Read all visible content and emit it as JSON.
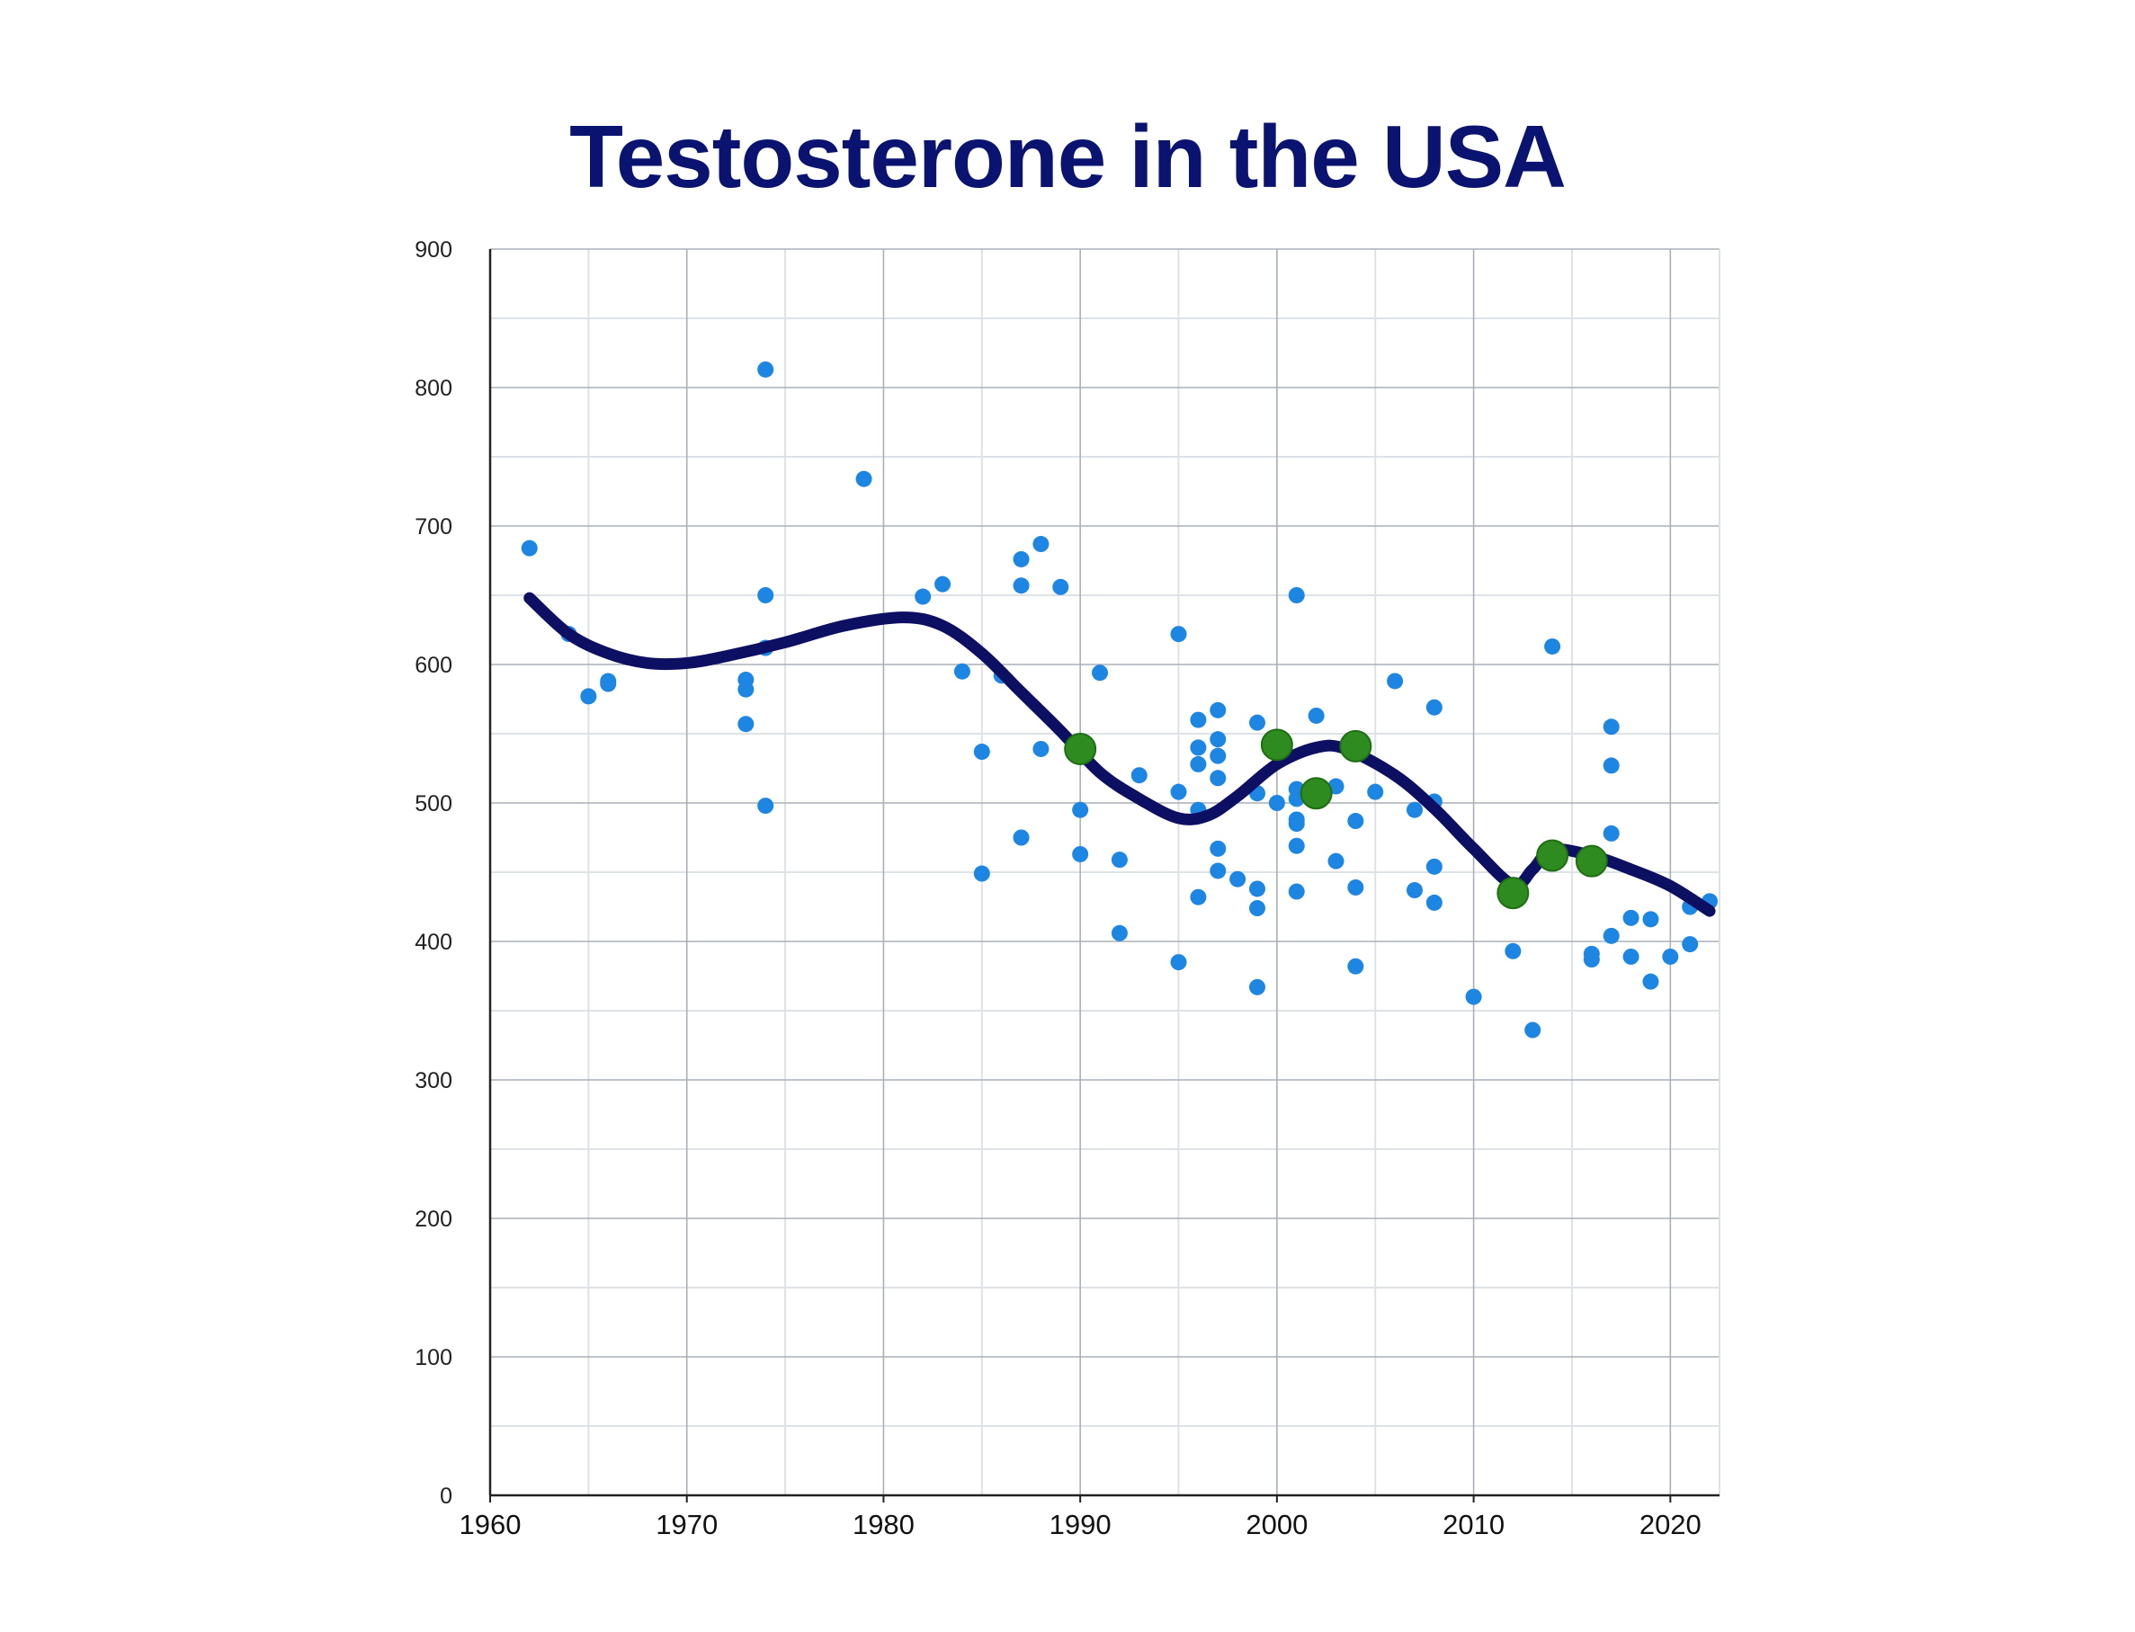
{
  "chart_data": {
    "type": "scatter",
    "title": "Testosterone in the USA",
    "xlabel": "",
    "ylabel": "",
    "xlim": [
      1960,
      2022.5
    ],
    "ylim": [
      0,
      900
    ],
    "x_ticks": [
      "1960",
      "1970",
      "1980",
      "1990",
      "2000",
      "2010",
      "2020"
    ],
    "y_ticks": [
      "0",
      "100",
      "200",
      "300",
      "400",
      "500",
      "600",
      "700",
      "800",
      "900"
    ],
    "grid": true,
    "colors": {
      "title": "#0a1470",
      "trend_line": "#0d0f62",
      "points": "#1d86e3",
      "highlighted_points": "#2e8b1f",
      "grid_major": "#a9b0b8",
      "grid_minor": "#dde2e7"
    },
    "series": [
      {
        "type": "scatter",
        "points": [
          [
            1962,
            684
          ],
          [
            1964,
            622
          ],
          [
            1965,
            577
          ],
          [
            1966,
            588
          ],
          [
            1966,
            586
          ],
          [
            1973,
            589
          ],
          [
            1973,
            582
          ],
          [
            1973,
            557
          ],
          [
            1974,
            813
          ],
          [
            1974,
            650
          ],
          [
            1974,
            612
          ],
          [
            1974,
            498
          ],
          [
            1979,
            734
          ],
          [
            1982,
            649
          ],
          [
            1983,
            658
          ],
          [
            1984,
            595
          ],
          [
            1985,
            537
          ],
          [
            1985,
            449
          ],
          [
            1986,
            592
          ],
          [
            1987,
            676
          ],
          [
            1987,
            657
          ],
          [
            1987,
            475
          ],
          [
            1988,
            687
          ],
          [
            1988,
            539
          ],
          [
            1989,
            656
          ],
          [
            1990,
            495
          ],
          [
            1990,
            463
          ],
          [
            1991,
            594
          ],
          [
            1992,
            459
          ],
          [
            1992,
            406
          ],
          [
            1993,
            520
          ],
          [
            1995,
            622
          ],
          [
            1995,
            508
          ],
          [
            1995,
            385
          ],
          [
            1996,
            560
          ],
          [
            1996,
            540
          ],
          [
            1996,
            528
          ],
          [
            1996,
            495
          ],
          [
            1996,
            432
          ],
          [
            1997,
            567
          ],
          [
            1997,
            546
          ],
          [
            1997,
            534
          ],
          [
            1997,
            518
          ],
          [
            1997,
            467
          ],
          [
            1997,
            451
          ],
          [
            1998,
            445
          ],
          [
            1999,
            558
          ],
          [
            1999,
            507
          ],
          [
            1999,
            438
          ],
          [
            1999,
            424
          ],
          [
            1999,
            367
          ],
          [
            2000,
            500
          ],
          [
            2001,
            650
          ],
          [
            2001,
            510
          ],
          [
            2001,
            503
          ],
          [
            2001,
            488
          ],
          [
            2001,
            485
          ],
          [
            2001,
            469
          ],
          [
            2001,
            436
          ],
          [
            2002,
            563
          ],
          [
            2003,
            512
          ],
          [
            2003,
            458
          ],
          [
            2004,
            487
          ],
          [
            2004,
            439
          ],
          [
            2004,
            382
          ],
          [
            2005,
            508
          ],
          [
            2006,
            588
          ],
          [
            2007,
            495
          ],
          [
            2007,
            437
          ],
          [
            2008,
            569
          ],
          [
            2008,
            501
          ],
          [
            2008,
            454
          ],
          [
            2008,
            428
          ],
          [
            2010,
            360
          ],
          [
            2012,
            393
          ],
          [
            2013,
            336
          ],
          [
            2014,
            613
          ],
          [
            2016,
            391
          ],
          [
            2016,
            387
          ],
          [
            2017,
            555
          ],
          [
            2017,
            527
          ],
          [
            2017,
            478
          ],
          [
            2017,
            404
          ],
          [
            2018,
            417
          ],
          [
            2018,
            389
          ],
          [
            2019,
            416
          ],
          [
            2019,
            371
          ],
          [
            2020,
            389
          ],
          [
            2021,
            398
          ],
          [
            2021,
            425
          ],
          [
            2022,
            429
          ]
        ]
      },
      {
        "type": "scatter-highlight",
        "points": [
          [
            1990,
            539
          ],
          [
            2000,
            542
          ],
          [
            2002,
            507
          ],
          [
            2004,
            541
          ],
          [
            2012,
            435
          ],
          [
            2014,
            462
          ],
          [
            2016,
            458
          ]
        ]
      },
      {
        "type": "trend-line",
        "points": [
          [
            1962,
            648
          ],
          [
            1964,
            622
          ],
          [
            1966,
            608
          ],
          [
            1968,
            601
          ],
          [
            1970,
            601
          ],
          [
            1972,
            606
          ],
          [
            1975,
            616
          ],
          [
            1978,
            628
          ],
          [
            1981,
            634
          ],
          [
            1983,
            628
          ],
          [
            1985,
            608
          ],
          [
            1987,
            580
          ],
          [
            1989,
            552
          ],
          [
            1991,
            522
          ],
          [
            1993,
            503
          ],
          [
            1995,
            489
          ],
          [
            1996.5,
            491
          ],
          [
            1998,
            505
          ],
          [
            2000,
            528
          ],
          [
            2002,
            540
          ],
          [
            2003.5,
            539
          ],
          [
            2006,
            520
          ],
          [
            2008,
            496
          ],
          [
            2010,
            467
          ],
          [
            2012,
            441
          ],
          [
            2013,
            452
          ],
          [
            2014,
            466
          ],
          [
            2016,
            462
          ],
          [
            2018,
            452
          ],
          [
            2020,
            440
          ],
          [
            2022,
            422
          ]
        ]
      }
    ]
  }
}
